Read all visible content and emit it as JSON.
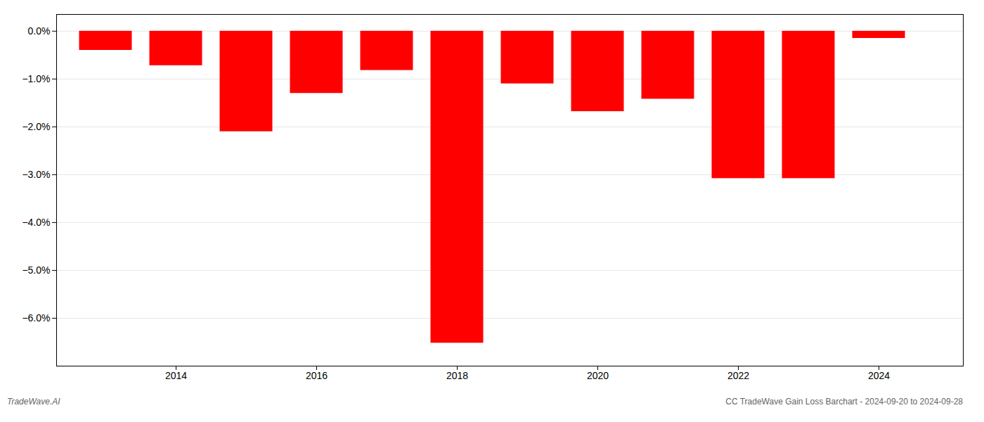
{
  "chart_data": {
    "type": "bar",
    "x": [
      2013,
      2014,
      2015,
      2016,
      2017,
      2018,
      2019,
      2020,
      2021,
      2022,
      2023,
      2024
    ],
    "values": [
      -0.4,
      -0.72,
      -2.1,
      -1.3,
      -0.82,
      -6.52,
      -1.1,
      -1.68,
      -1.42,
      -3.08,
      -3.08,
      -0.15
    ],
    "color": "#ff0000",
    "xlim": [
      2012.3,
      2025.2
    ],
    "xticks": [
      2014,
      2016,
      2018,
      2020,
      2022,
      2024
    ],
    "ylim": [
      -7.0,
      0.35
    ],
    "yticks": [
      {
        "value": 0.0,
        "label": "0.0%"
      },
      {
        "value": -1.0,
        "label": "−1.0%"
      },
      {
        "value": -2.0,
        "label": "−2.0%"
      },
      {
        "value": -3.0,
        "label": "−3.0%"
      },
      {
        "value": -4.0,
        "label": "−4.0%"
      },
      {
        "value": -5.0,
        "label": "−5.0%"
      },
      {
        "value": -6.0,
        "label": "−6.0%"
      }
    ],
    "grid": true,
    "annotations": [
      "TradeWave.AI",
      "CC TradeWave Gain Loss Barchart - 2024-09-20 to 2024-09-28"
    ]
  }
}
